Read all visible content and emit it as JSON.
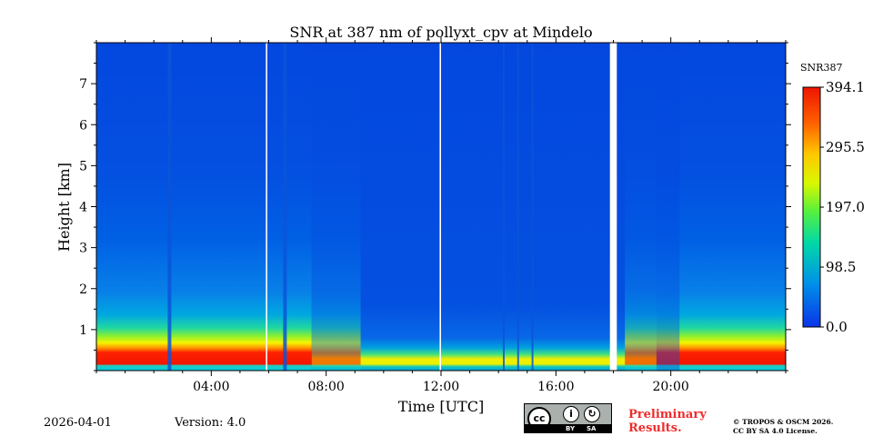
{
  "chart_data": {
    "type": "heatmap",
    "title": "SNR at 387 nm of pollyxt_cpv at Mindelo",
    "xlabel": "Time [UTC]",
    "ylabel": "Height [km]",
    "xlim_hours": [
      0,
      24
    ],
    "ylim_km": [
      0,
      8
    ],
    "x_ticks": [
      {
        "value": 4,
        "label": "04:00"
      },
      {
        "value": 8,
        "label": "08:00"
      },
      {
        "value": 12,
        "label": "12:00"
      },
      {
        "value": 16,
        "label": "16:00"
      },
      {
        "value": 20,
        "label": "20:00"
      }
    ],
    "y_ticks": [
      {
        "value": 1,
        "label": "1"
      },
      {
        "value": 2,
        "label": "2"
      },
      {
        "value": 3,
        "label": "3"
      },
      {
        "value": 4,
        "label": "4"
      },
      {
        "value": 5,
        "label": "5"
      },
      {
        "value": 6,
        "label": "6"
      },
      {
        "value": 7,
        "label": "7"
      }
    ],
    "colorbar": {
      "label": "SNR387",
      "min": 0.0,
      "max": 394.1,
      "ticks": [
        {
          "value": 394.1,
          "label": "394.1"
        },
        {
          "value": 295.5,
          "label": "295.5"
        },
        {
          "value": 197.0,
          "label": "197.0"
        },
        {
          "value": 98.5,
          "label": "98.5"
        },
        {
          "value": 0.0,
          "label": "0.0"
        }
      ],
      "colormap": [
        "#0000ff",
        "#0066ff",
        "#00ccff",
        "#00ffaa",
        "#66ff33",
        "#ffff00",
        "#ff9900",
        "#ff2200",
        "#dd0000"
      ]
    },
    "background_color": "#0347df",
    "data_gaps_hours": [
      [
        5.9,
        5.95
      ],
      [
        11.95,
        12.0
      ],
      [
        17.88,
        18.12
      ]
    ],
    "vertical_streaks_hours": [
      2.53,
      6.55,
      14.2,
      14.7,
      15.2
    ]
  },
  "footer": {
    "date": "2026-04-01",
    "version": "Version: 4.0",
    "cc_by": "BY",
    "cc_sa": "SA",
    "preliminary": "Preliminary\nResults.",
    "copyright": "© TROPOS & OSCM 2026.\nCC BY SA 4.0 License."
  }
}
